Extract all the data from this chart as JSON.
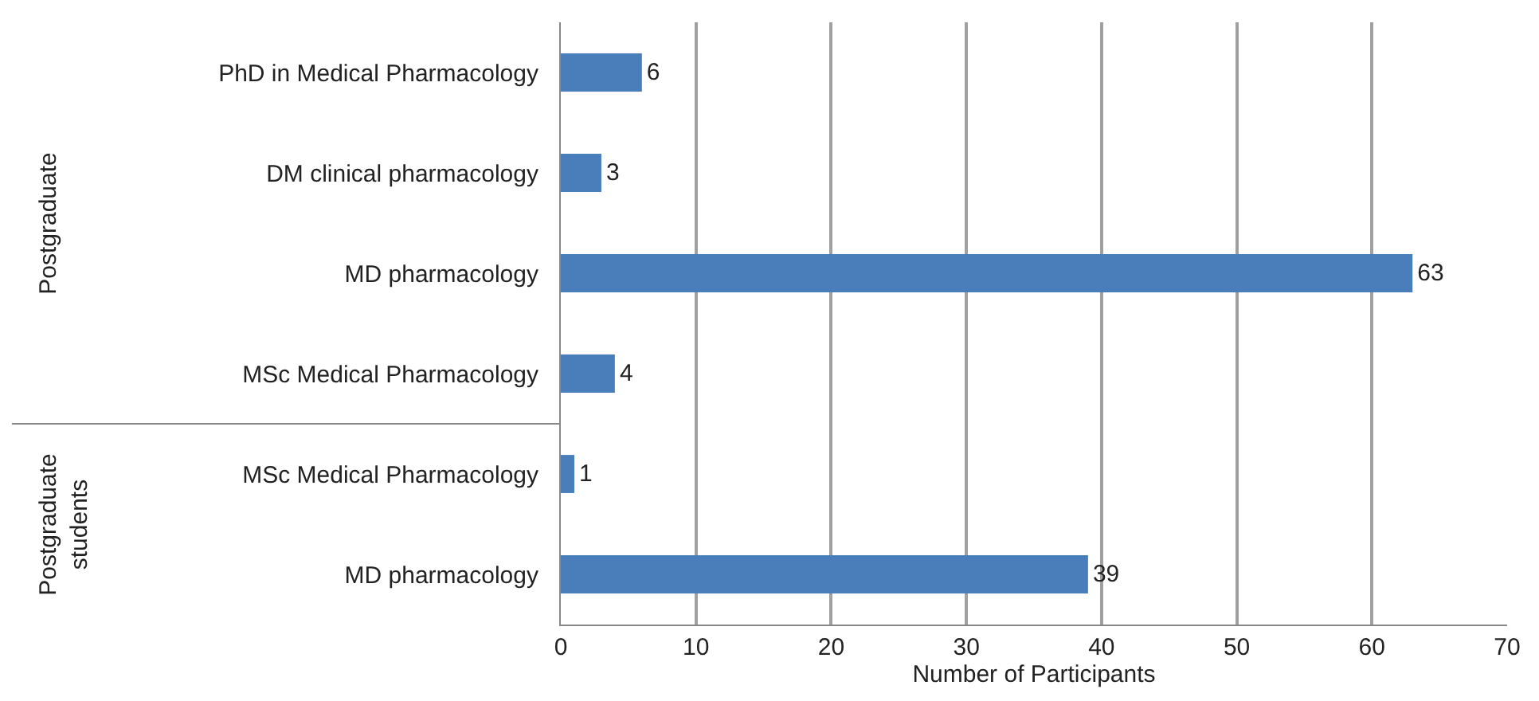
{
  "chart_data": {
    "type": "bar",
    "orientation": "horizontal",
    "categories": [
      "PhD in Medical Pharmacology",
      "DM clinical pharmacology",
      "MD pharmacology",
      "MSc Medical Pharmacology",
      "MSc Medical Pharmacology",
      "MD pharmacology"
    ],
    "values": [
      6,
      3,
      63,
      4,
      1,
      39
    ],
    "color": "#4a7ebb",
    "xlim": [
      0,
      70
    ],
    "xticks": [
      0,
      10,
      20,
      30,
      40,
      50,
      60,
      70
    ],
    "xlabel": "Number of Participants",
    "grid": "x",
    "data_labels": true,
    "annotations": [
      "Postgraduate",
      "Postgraduate students"
    ]
  }
}
